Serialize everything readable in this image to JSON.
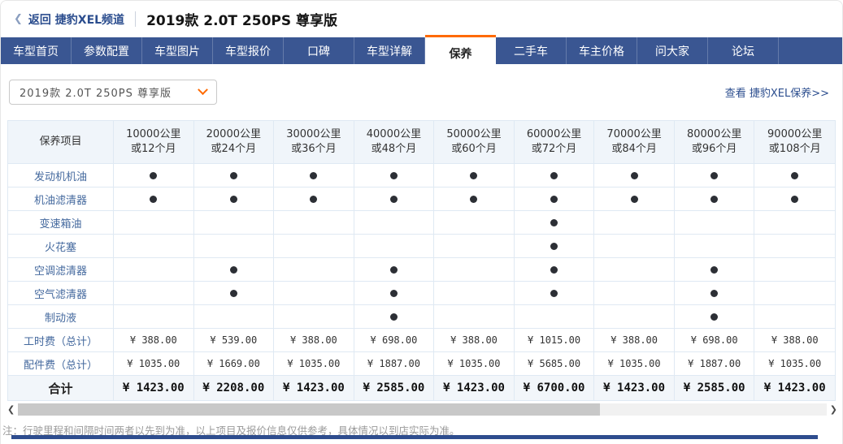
{
  "colors": {
    "nav_blue": "#3a5692",
    "active_tab_orange": "#ff6a00",
    "link_blue": "#2b4d8e",
    "row_label_blue": "#44699e",
    "table_border": "#dfe9f3",
    "header_row_bg": "#f0f5fa",
    "total_row_bg": "#f2f6fa",
    "bottom_bar_blue": "#2e4d8e"
  },
  "header": {
    "back_icon": "❮",
    "back_label": "返回 捷豹XEL频道",
    "title": "2019款 2.0T 250PS 尊享版"
  },
  "nav": {
    "tabs": [
      {
        "id": "home",
        "label": "车型首页",
        "active": false
      },
      {
        "id": "config",
        "label": "参数配置",
        "active": false
      },
      {
        "id": "pictures",
        "label": "车型图片",
        "active": false
      },
      {
        "id": "price",
        "label": "车型报价",
        "active": false
      },
      {
        "id": "koubei",
        "label": "口碑",
        "active": false
      },
      {
        "id": "details",
        "label": "车型详解",
        "active": false
      },
      {
        "id": "maintenance",
        "label": "保养",
        "active": true
      },
      {
        "id": "used-car",
        "label": "二手车",
        "active": false
      },
      {
        "id": "owner-price",
        "label": "车主价格",
        "active": false
      },
      {
        "id": "ask",
        "label": "问大家",
        "active": false
      },
      {
        "id": "forum",
        "label": "论坛",
        "active": false
      }
    ]
  },
  "toolbar": {
    "model_select_value": "2019款 2.0T 250PS 尊享版",
    "view_link": "查看 捷豹XEL保养>>"
  },
  "table": {
    "item_header": "保养项目",
    "columns": [
      {
        "line1": "10000公里",
        "line2": "或12个月"
      },
      {
        "line1": "20000公里",
        "line2": "或24个月"
      },
      {
        "line1": "30000公里",
        "line2": "或36个月"
      },
      {
        "line1": "40000公里",
        "line2": "或48个月"
      },
      {
        "line1": "50000公里",
        "line2": "或60个月"
      },
      {
        "line1": "60000公里",
        "line2": "或72个月"
      },
      {
        "line1": "70000公里",
        "line2": "或84个月"
      },
      {
        "line1": "80000公里",
        "line2": "或96个月"
      },
      {
        "line1": "90000公里",
        "line2": "或108个月"
      }
    ],
    "maintenance_rows": [
      {
        "label": "发动机机油",
        "marks": [
          1,
          1,
          1,
          1,
          1,
          1,
          1,
          1,
          1
        ]
      },
      {
        "label": "机油滤清器",
        "marks": [
          1,
          1,
          1,
          1,
          1,
          1,
          1,
          1,
          1
        ]
      },
      {
        "label": "变速箱油",
        "marks": [
          0,
          0,
          0,
          0,
          0,
          1,
          0,
          0,
          0
        ]
      },
      {
        "label": "火花塞",
        "marks": [
          0,
          0,
          0,
          0,
          0,
          1,
          0,
          0,
          0
        ]
      },
      {
        "label": "空调滤清器",
        "marks": [
          0,
          1,
          0,
          1,
          0,
          1,
          0,
          1,
          0
        ]
      },
      {
        "label": "空气滤清器",
        "marks": [
          0,
          1,
          0,
          1,
          0,
          1,
          0,
          1,
          0
        ]
      },
      {
        "label": "制动液",
        "marks": [
          0,
          0,
          0,
          1,
          0,
          0,
          0,
          1,
          0
        ]
      }
    ],
    "fee_rows": [
      {
        "label": "工时费（总计）",
        "values": [
          "¥ 388.00",
          "¥ 539.00",
          "¥ 388.00",
          "¥ 698.00",
          "¥ 388.00",
          "¥ 1015.00",
          "¥ 388.00",
          "¥ 698.00",
          "¥ 388.00"
        ]
      },
      {
        "label": "配件费（总计）",
        "values": [
          "¥ 1035.00",
          "¥ 1669.00",
          "¥ 1035.00",
          "¥ 1887.00",
          "¥ 1035.00",
          "¥ 5685.00",
          "¥ 1035.00",
          "¥ 1887.00",
          "¥ 1035.00"
        ]
      }
    ],
    "total_row": {
      "label": "合计",
      "values": [
        "¥ 1423.00",
        "¥ 2208.00",
        "¥ 1423.00",
        "¥ 2585.00",
        "¥ 1423.00",
        "¥ 6700.00",
        "¥ 1423.00",
        "¥ 2585.00",
        "¥ 1423.00"
      ]
    }
  },
  "scrollbar": {
    "left_icon": "❮",
    "right_icon": "❯"
  },
  "footer": {
    "note": "注：行驶里程和间隔时间两者以先到为准，以上项目及报价信息仅供参考，具体情况以到店实际为准。"
  }
}
